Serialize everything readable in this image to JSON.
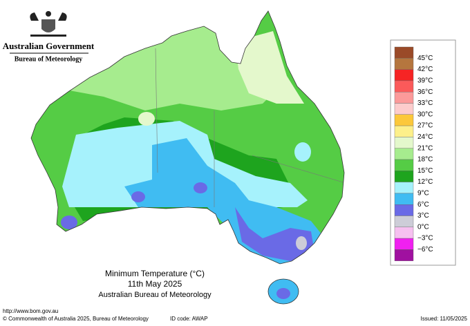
{
  "header": {
    "government": "Australian Government",
    "agency": "Bureau of Meteorology"
  },
  "title": {
    "line1": "Minimum Temperature (°C)",
    "line2": "11th May 2025",
    "line3": "Australian Bureau of Meteorology"
  },
  "legend": [
    {
      "label": "45°C",
      "color": "#9a4a28"
    },
    {
      "label": "42°C",
      "color": "#b5763e"
    },
    {
      "label": "39°C",
      "color": "#f62424"
    },
    {
      "label": "36°C",
      "color": "#fb5a5a"
    },
    {
      "label": "33°C",
      "color": "#fc9a9a"
    },
    {
      "label": "30°C",
      "color": "#fdcccc"
    },
    {
      "label": "27°C",
      "color": "#fcc83a"
    },
    {
      "label": "24°C",
      "color": "#fdf08a"
    },
    {
      "label": "21°C",
      "color": "#e4f8cc"
    },
    {
      "label": "18°C",
      "color": "#a6ec8e"
    },
    {
      "label": "15°C",
      "color": "#55cc45"
    },
    {
      "label": "12°C",
      "color": "#1ea41e"
    },
    {
      "label": "9°C",
      "color": "#a6f2fc"
    },
    {
      "label": "6°C",
      "color": "#40bcf2"
    },
    {
      "label": "3°C",
      "color": "#6a6ae6"
    },
    {
      "label": "0°C",
      "color": "#cdcdd8"
    },
    {
      "label": "−3°C",
      "color": "#f6c0f0"
    },
    {
      "label": "−6°C",
      "color": "#f020f0"
    }
  ],
  "legend_bottom_color": "#a010a0",
  "footer": {
    "url": "http://www.bom.gov.au",
    "copyright": "© Commonwealth of Australia 2025, Bureau of Meteorology",
    "id": "ID code: AWAP",
    "issued": "Issued: 11/05/2025"
  }
}
